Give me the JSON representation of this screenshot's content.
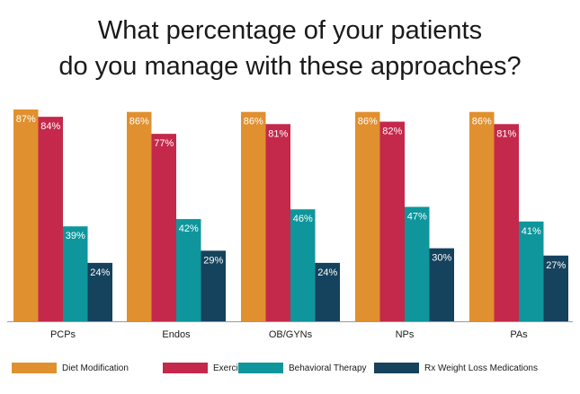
{
  "title_lines": [
    "What percentage of your patients",
    "do you manage with these approaches?"
  ],
  "colors": {
    "Diet Modification": "#E0902F",
    "Exercise": "#C4284B",
    "Behavioral Therapy": "#0E969C",
    "Rx Weight Loss Medications": "#15425C",
    "axis": "#9a9a9a"
  },
  "chart_data": {
    "type": "bar",
    "title": "What percentage of your patients do you manage with these approaches?",
    "categories": [
      "PCPs",
      "Endos",
      "OB/GYNs",
      "NPs",
      "PAs"
    ],
    "series": [
      {
        "name": "Diet Modification",
        "values": [
          87,
          86,
          86,
          86,
          86
        ]
      },
      {
        "name": "Exercise",
        "values": [
          84,
          77,
          81,
          82,
          81
        ]
      },
      {
        "name": "Behavioral Therapy",
        "values": [
          39,
          42,
          46,
          47,
          41
        ]
      },
      {
        "name": "Rx Weight Loss Medications",
        "values": [
          24,
          29,
          24,
          30,
          27
        ]
      }
    ],
    "value_suffix": "%",
    "ylim": [
      0,
      87
    ],
    "grid": false,
    "legend": "bottom"
  }
}
